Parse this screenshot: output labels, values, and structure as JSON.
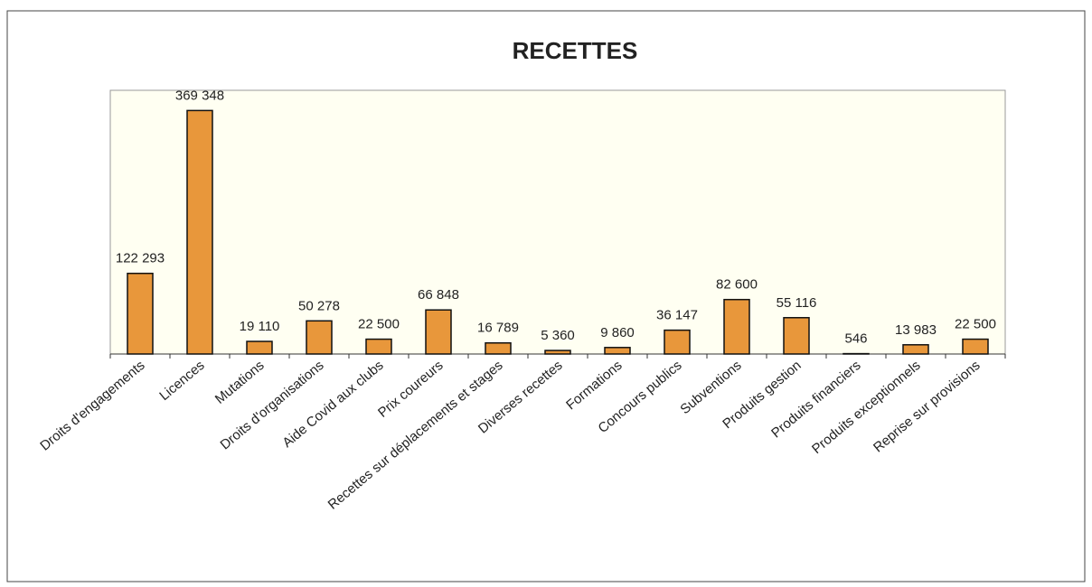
{
  "chart_data": {
    "type": "bar",
    "title": "RECETTES",
    "categories": [
      "Droits d'engagements",
      "Licences",
      "Mutations",
      "Droits d'organisations",
      "Aide Covid aux clubs",
      "Prix coureurs",
      "Recettes sur déplacements et stages",
      "Diverses recettes",
      "Formations",
      "Concours publics",
      "Subventions",
      "Produits gestion",
      "Produits financiers",
      "Produits exceptionnels",
      "Reprise sur provisions"
    ],
    "values": [
      122293,
      369348,
      19110,
      50278,
      22500,
      66848,
      16789,
      5360,
      9860,
      36147,
      82600,
      55116,
      546,
      13983,
      22500
    ],
    "value_labels": [
      "122 293",
      "369 348",
      "19 110",
      "50 278",
      "22 500",
      "66 848",
      "16 789",
      "5 360",
      "9 860",
      "36 147",
      "82 600",
      "55 116",
      "546",
      "13 983",
      "22 500"
    ],
    "color": "#e8973b",
    "ylim": [
      0,
      400000
    ]
  }
}
